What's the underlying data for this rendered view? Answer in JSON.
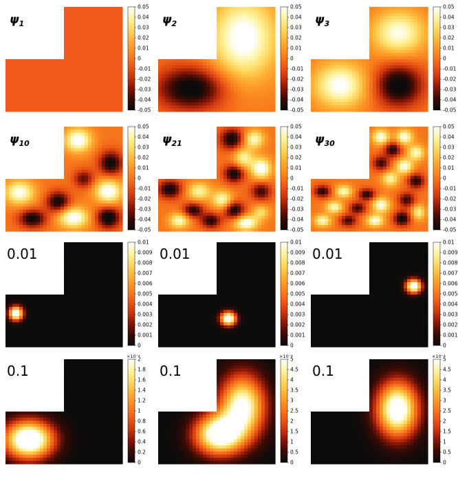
{
  "figure": {
    "description_free": true
  },
  "colors": {
    "colormap": [
      "#0b0b0b",
      "#3a0b05",
      "#8b1808",
      "#d23a10",
      "#f06018",
      "#fb8a20",
      "#fdb035",
      "#fdd860",
      "#fef3a0",
      "#ffffff"
    ],
    "background": "#ffffff",
    "outline": "#000000"
  },
  "chart_data": [
    {
      "type": "heatmap",
      "label_math": {
        "base": "ψ",
        "sub": "1"
      },
      "colorbar": {
        "ticks": [
          "0.05",
          "0.04",
          "0.03",
          "0.02",
          "0.01",
          "0",
          "-0.01",
          "-0.02",
          "-0.03",
          "-0.04",
          "-0.05"
        ],
        "multiplier": ""
      },
      "domain": "L-shape",
      "vrange": [
        -0.05,
        0.05
      ],
      "blobs": [
        {
          "x": 0.5,
          "y": 0.5,
          "sx": 10,
          "sy": 10,
          "a": 0.0
        }
      ],
      "base": 0.0
    },
    {
      "type": "heatmap",
      "label_math": {
        "base": "ψ",
        "sub": "2"
      },
      "colorbar": {
        "ticks": [
          "0.05",
          "0.04",
          "0.03",
          "0.02",
          "0.01",
          "0",
          "-0.01",
          "-0.02",
          "-0.03",
          "-0.04",
          "-0.05"
        ],
        "multiplier": ""
      },
      "domain": "L-shape",
      "vrange": [
        -0.05,
        0.05
      ],
      "blobs": [
        {
          "x": 0.73,
          "y": 0.3,
          "sx": 0.2,
          "sy": 0.28,
          "a": 0.055
        },
        {
          "x": 0.28,
          "y": 0.78,
          "sx": 0.2,
          "sy": 0.14,
          "a": -0.055
        }
      ],
      "base": 0.0
    },
    {
      "type": "heatmap",
      "label_math": {
        "base": "ψ",
        "sub": "3"
      },
      "colorbar": {
        "ticks": [
          "0.05",
          "0.04",
          "0.03",
          "0.02",
          "0.01",
          "0",
          "-0.01",
          "-0.02",
          "-0.03",
          "-0.04",
          "-0.05"
        ],
        "multiplier": ""
      },
      "domain": "L-shape",
      "vrange": [
        -0.05,
        0.05
      ],
      "blobs": [
        {
          "x": 0.75,
          "y": 0.25,
          "sx": 0.16,
          "sy": 0.15,
          "a": 0.048
        },
        {
          "x": 0.25,
          "y": 0.75,
          "sx": 0.16,
          "sy": 0.15,
          "a": 0.052
        },
        {
          "x": 0.75,
          "y": 0.75,
          "sx": 0.14,
          "sy": 0.14,
          "a": -0.055
        }
      ],
      "base": 0.0
    },
    {
      "type": "heatmap",
      "label_math": {
        "base": "ψ",
        "sub": "10"
      },
      "colorbar": {
        "ticks": [
          "0.05",
          "0.04",
          "0.03",
          "0.02",
          "0.01",
          "0",
          "-0.01",
          "-0.02",
          "-0.03",
          "-0.04",
          "-0.05"
        ],
        "multiplier": ""
      },
      "domain": "L-shape",
      "vrange": [
        -0.05,
        0.05
      ],
      "blobs": [
        {
          "x": 0.62,
          "y": 0.13,
          "sx": 0.08,
          "sy": 0.08,
          "a": 0.055
        },
        {
          "x": 0.9,
          "y": 0.35,
          "sx": 0.07,
          "sy": 0.08,
          "a": -0.05
        },
        {
          "x": 0.67,
          "y": 0.5,
          "sx": 0.06,
          "sy": 0.06,
          "a": -0.035
        },
        {
          "x": 0.88,
          "y": 0.62,
          "sx": 0.08,
          "sy": 0.08,
          "a": 0.055
        },
        {
          "x": 0.12,
          "y": 0.63,
          "sx": 0.09,
          "sy": 0.08,
          "a": 0.05
        },
        {
          "x": 0.45,
          "y": 0.72,
          "sx": 0.07,
          "sy": 0.07,
          "a": -0.05
        },
        {
          "x": 0.23,
          "y": 0.88,
          "sx": 0.08,
          "sy": 0.06,
          "a": -0.05
        },
        {
          "x": 0.58,
          "y": 0.87,
          "sx": 0.09,
          "sy": 0.07,
          "a": 0.055
        },
        {
          "x": 0.88,
          "y": 0.87,
          "sx": 0.07,
          "sy": 0.07,
          "a": -0.055
        }
      ],
      "base": 0.0
    },
    {
      "type": "heatmap",
      "label_math": {
        "base": "ψ",
        "sub": "21"
      },
      "colorbar": {
        "ticks": [
          "0.05",
          "0.04",
          "0.03",
          "0.02",
          "0.01",
          "0",
          "-0.01",
          "-0.02",
          "-0.03",
          "-0.04",
          "-0.05"
        ],
        "multiplier": ""
      },
      "domain": "L-shape",
      "vrange": [
        -0.05,
        0.05
      ],
      "blobs": [
        {
          "x": 0.63,
          "y": 0.12,
          "sx": 0.07,
          "sy": 0.07,
          "a": -0.05
        },
        {
          "x": 0.82,
          "y": 0.12,
          "sx": 0.06,
          "sy": 0.06,
          "a": 0.045
        },
        {
          "x": 0.73,
          "y": 0.3,
          "sx": 0.06,
          "sy": 0.07,
          "a": 0.04
        },
        {
          "x": 0.88,
          "y": 0.4,
          "sx": 0.06,
          "sy": 0.07,
          "a": 0.055
        },
        {
          "x": 0.65,
          "y": 0.45,
          "sx": 0.06,
          "sy": 0.06,
          "a": -0.05
        },
        {
          "x": 0.88,
          "y": 0.62,
          "sx": 0.06,
          "sy": 0.06,
          "a": -0.04
        },
        {
          "x": 0.1,
          "y": 0.6,
          "sx": 0.07,
          "sy": 0.06,
          "a": -0.05
        },
        {
          "x": 0.35,
          "y": 0.62,
          "sx": 0.07,
          "sy": 0.06,
          "a": 0.04
        },
        {
          "x": 0.55,
          "y": 0.7,
          "sx": 0.06,
          "sy": 0.06,
          "a": 0.045
        },
        {
          "x": 0.3,
          "y": 0.8,
          "sx": 0.06,
          "sy": 0.05,
          "a": -0.045
        },
        {
          "x": 0.65,
          "y": 0.8,
          "sx": 0.06,
          "sy": 0.06,
          "a": -0.05
        },
        {
          "x": 0.18,
          "y": 0.9,
          "sx": 0.06,
          "sy": 0.05,
          "a": 0.045
        },
        {
          "x": 0.45,
          "y": 0.9,
          "sx": 0.06,
          "sy": 0.05,
          "a": -0.045
        },
        {
          "x": 0.75,
          "y": 0.92,
          "sx": 0.07,
          "sy": 0.05,
          "a": 0.055
        },
        {
          "x": 0.88,
          "y": 0.82,
          "sx": 0.05,
          "sy": 0.05,
          "a": 0.03
        }
      ],
      "base": 0.0
    },
    {
      "type": "heatmap",
      "label_math": {
        "base": "ψ",
        "sub": "30"
      },
      "colorbar": {
        "ticks": [
          "0.05",
          "0.04",
          "0.03",
          "0.02",
          "0.01",
          "0",
          "-0.01",
          "-0.02",
          "-0.03",
          "-0.04",
          "-0.05"
        ],
        "multiplier": ""
      },
      "domain": "L-shape",
      "vrange": [
        -0.05,
        0.05
      ],
      "blobs": [
        {
          "x": 0.6,
          "y": 0.1,
          "sx": 0.05,
          "sy": 0.05,
          "a": 0.05
        },
        {
          "x": 0.8,
          "y": 0.1,
          "sx": 0.05,
          "sy": 0.05,
          "a": 0.05
        },
        {
          "x": 0.7,
          "y": 0.22,
          "sx": 0.05,
          "sy": 0.05,
          "a": -0.045
        },
        {
          "x": 0.9,
          "y": 0.25,
          "sx": 0.05,
          "sy": 0.05,
          "a": 0.045
        },
        {
          "x": 0.6,
          "y": 0.35,
          "sx": 0.05,
          "sy": 0.05,
          "a": -0.04
        },
        {
          "x": 0.8,
          "y": 0.38,
          "sx": 0.05,
          "sy": 0.05,
          "a": 0.05
        },
        {
          "x": 0.68,
          "y": 0.5,
          "sx": 0.05,
          "sy": 0.05,
          "a": 0.04
        },
        {
          "x": 0.9,
          "y": 0.52,
          "sx": 0.05,
          "sy": 0.05,
          "a": -0.045
        },
        {
          "x": 0.1,
          "y": 0.62,
          "sx": 0.05,
          "sy": 0.04,
          "a": -0.045
        },
        {
          "x": 0.28,
          "y": 0.62,
          "sx": 0.05,
          "sy": 0.04,
          "a": 0.045
        },
        {
          "x": 0.48,
          "y": 0.65,
          "sx": 0.05,
          "sy": 0.04,
          "a": -0.045
        },
        {
          "x": 0.2,
          "y": 0.77,
          "sx": 0.05,
          "sy": 0.04,
          "a": 0.045
        },
        {
          "x": 0.4,
          "y": 0.78,
          "sx": 0.05,
          "sy": 0.04,
          "a": -0.04
        },
        {
          "x": 0.6,
          "y": 0.75,
          "sx": 0.05,
          "sy": 0.05,
          "a": 0.05
        },
        {
          "x": 0.82,
          "y": 0.7,
          "sx": 0.05,
          "sy": 0.05,
          "a": -0.04
        },
        {
          "x": 0.1,
          "y": 0.9,
          "sx": 0.05,
          "sy": 0.04,
          "a": 0.045
        },
        {
          "x": 0.32,
          "y": 0.9,
          "sx": 0.05,
          "sy": 0.04,
          "a": -0.04
        },
        {
          "x": 0.55,
          "y": 0.9,
          "sx": 0.05,
          "sy": 0.04,
          "a": 0.05
        },
        {
          "x": 0.78,
          "y": 0.88,
          "sx": 0.05,
          "sy": 0.05,
          "a": -0.05
        },
        {
          "x": 0.92,
          "y": 0.82,
          "sx": 0.04,
          "sy": 0.05,
          "a": 0.04
        }
      ],
      "base": 0.0
    },
    {
      "type": "heatmap",
      "label": "0.01",
      "colorbar": {
        "ticks": [
          "0.01",
          "0.009",
          "0.008",
          "0.007",
          "0.006",
          "0.005",
          "0.004",
          "0.003",
          "0.002",
          "0.001",
          "0"
        ],
        "multiplier": ""
      },
      "domain": "L-shape",
      "vrange": [
        0,
        0.01
      ],
      "blobs": [
        {
          "x": 0.09,
          "y": 0.68,
          "sx": 0.04,
          "sy": 0.045,
          "a": 0.012
        }
      ],
      "base": 0.0
    },
    {
      "type": "heatmap",
      "label": "0.01",
      "colorbar": {
        "ticks": [
          "0.01",
          "0.009",
          "0.008",
          "0.007",
          "0.006",
          "0.005",
          "0.004",
          "0.003",
          "0.002",
          "0.001",
          "0"
        ],
        "multiplier": ""
      },
      "domain": "L-shape",
      "vrange": [
        0,
        0.01
      ],
      "blobs": [
        {
          "x": 0.6,
          "y": 0.73,
          "sx": 0.045,
          "sy": 0.045,
          "a": 0.012
        }
      ],
      "base": 0.0
    },
    {
      "type": "heatmap",
      "label": "0.01",
      "colorbar": {
        "ticks": [
          "0.01",
          "0.009",
          "0.008",
          "0.007",
          "0.006",
          "0.005",
          "0.004",
          "0.003",
          "0.002",
          "0.001",
          "0"
        ],
        "multiplier": ""
      },
      "domain": "L-shape",
      "vrange": [
        0,
        0.01
      ],
      "blobs": [
        {
          "x": 0.88,
          "y": 0.42,
          "sx": 0.045,
          "sy": 0.045,
          "a": 0.012
        }
      ],
      "base": 0.0
    },
    {
      "type": "heatmap",
      "label": "0.1",
      "colorbar": {
        "ticks": [
          "2",
          "1.8",
          "1.6",
          "1.4",
          "1.2",
          "1",
          "0.8",
          "0.6",
          "0.4",
          "0.2",
          "0"
        ],
        "multiplier": "×10⁻⁴"
      },
      "domain": "L-shape",
      "vrange": [
        0,
        2
      ],
      "blobs": [
        {
          "x": 0.2,
          "y": 0.77,
          "sx": 0.14,
          "sy": 0.12,
          "a": 2.6
        }
      ],
      "base": 0.0
    },
    {
      "type": "heatmap",
      "label": "0.1",
      "colorbar": {
        "ticks": [
          "5",
          "4.5",
          "4",
          "3.5",
          "3",
          "2.5",
          "2",
          "1.5",
          "1",
          "0.5",
          "0"
        ],
        "multiplier": "×10⁻⁴"
      },
      "domain": "L-shape",
      "vrange": [
        0,
        5
      ],
      "blobs": [
        {
          "x": 0.52,
          "y": 0.72,
          "sx": 0.14,
          "sy": 0.13,
          "a": 5.8
        },
        {
          "x": 0.72,
          "y": 0.45,
          "sx": 0.13,
          "sy": 0.2,
          "a": 5.2
        }
      ],
      "base": 0.0
    },
    {
      "type": "heatmap",
      "label": "0.1",
      "colorbar": {
        "ticks": [
          "5",
          "4.5",
          "4",
          "3.5",
          "3",
          "2.5",
          "2",
          "1.5",
          "1",
          "0.5",
          "0"
        ],
        "multiplier": "×10⁻⁴"
      },
      "domain": "L-shape",
      "vrange": [
        0,
        5
      ],
      "blobs": [
        {
          "x": 0.74,
          "y": 0.48,
          "sx": 0.12,
          "sy": 0.18,
          "a": 5.8
        }
      ],
      "base": 0.0
    }
  ]
}
